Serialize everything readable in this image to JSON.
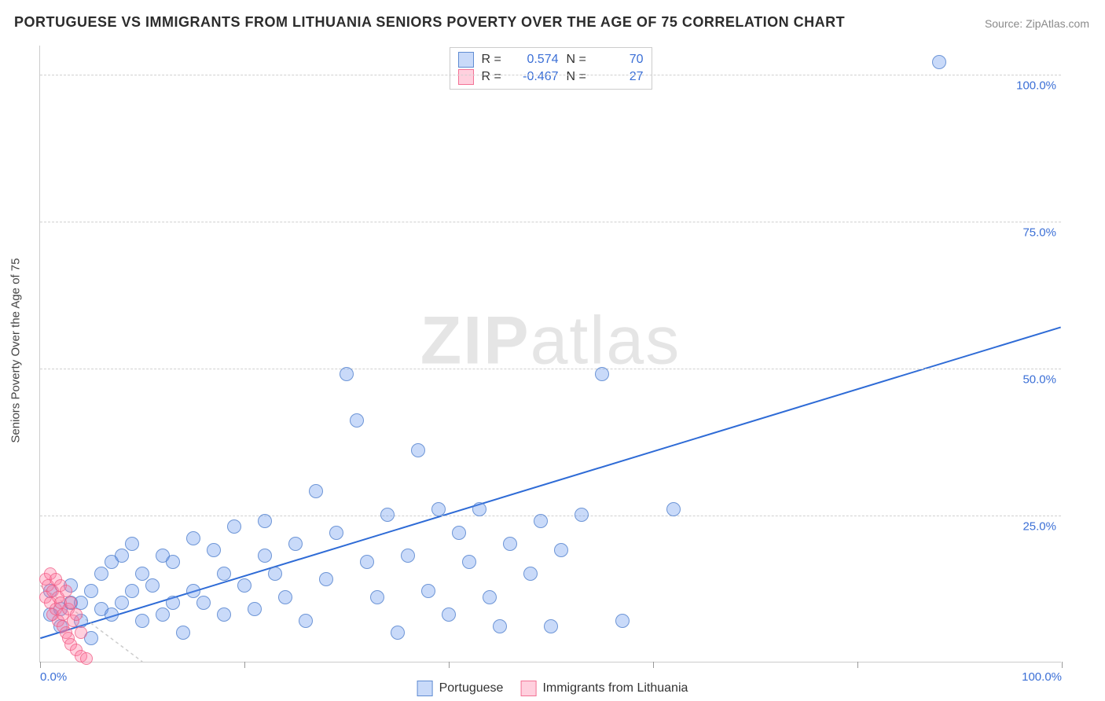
{
  "title": "PORTUGUESE VS IMMIGRANTS FROM LITHUANIA SENIORS POVERTY OVER THE AGE OF 75 CORRELATION CHART",
  "source": "Source: ZipAtlas.com",
  "y_axis_label": "Seniors Poverty Over the Age of 75",
  "watermark": {
    "bold": "ZIP",
    "light": "atlas"
  },
  "chart": {
    "type": "scatter",
    "xlim": [
      0,
      100
    ],
    "ylim": [
      0,
      105
    ],
    "x_ticks": [
      0,
      20,
      40,
      60,
      80,
      100
    ],
    "x_tick_labels": [
      "0.0%",
      "",
      "",
      "",
      "",
      "100.0%"
    ],
    "y_ticks": [
      25,
      50,
      75,
      100
    ],
    "y_tick_labels": [
      "25.0%",
      "50.0%",
      "75.0%",
      "100.0%"
    ],
    "background_color": "#ffffff",
    "grid_color": "#d0d0d0",
    "axis_text_color": "#3b6fd6",
    "series": [
      {
        "key": "portuguese",
        "label": "Portuguese",
        "color_fill": "rgba(100,149,237,0.35)",
        "color_stroke": "rgba(70,120,200,0.7)",
        "marker_size": 18,
        "R": "0.574",
        "N": "70",
        "trend": {
          "x1": 0,
          "y1": 4,
          "x2": 100,
          "y2": 57,
          "color": "#2e6bd6",
          "width": 2
        },
        "points": [
          [
            1,
            8
          ],
          [
            1,
            12
          ],
          [
            2,
            9
          ],
          [
            2,
            6
          ],
          [
            3,
            10
          ],
          [
            3,
            13
          ],
          [
            4,
            10
          ],
          [
            4,
            7
          ],
          [
            5,
            4
          ],
          [
            5,
            12
          ],
          [
            6,
            15
          ],
          [
            6,
            9
          ],
          [
            7,
            8
          ],
          [
            7,
            17
          ],
          [
            8,
            18
          ],
          [
            8,
            10
          ],
          [
            9,
            12
          ],
          [
            9,
            20
          ],
          [
            10,
            7
          ],
          [
            10,
            15
          ],
          [
            11,
            13
          ],
          [
            12,
            18
          ],
          [
            12,
            8
          ],
          [
            13,
            10
          ],
          [
            13,
            17
          ],
          [
            14,
            5
          ],
          [
            15,
            21
          ],
          [
            15,
            12
          ],
          [
            16,
            10
          ],
          [
            17,
            19
          ],
          [
            18,
            15
          ],
          [
            18,
            8
          ],
          [
            19,
            23
          ],
          [
            20,
            13
          ],
          [
            21,
            9
          ],
          [
            22,
            18
          ],
          [
            22,
            24
          ],
          [
            23,
            15
          ],
          [
            24,
            11
          ],
          [
            25,
            20
          ],
          [
            26,
            7
          ],
          [
            27,
            29
          ],
          [
            28,
            14
          ],
          [
            29,
            22
          ],
          [
            30,
            49
          ],
          [
            31,
            41
          ],
          [
            32,
            17
          ],
          [
            33,
            11
          ],
          [
            34,
            25
          ],
          [
            35,
            5
          ],
          [
            36,
            18
          ],
          [
            37,
            36
          ],
          [
            38,
            12
          ],
          [
            39,
            26
          ],
          [
            40,
            8
          ],
          [
            41,
            22
          ],
          [
            42,
            17
          ],
          [
            43,
            26
          ],
          [
            44,
            11
          ],
          [
            45,
            6
          ],
          [
            46,
            20
          ],
          [
            48,
            15
          ],
          [
            49,
            24
          ],
          [
            50,
            6
          ],
          [
            51,
            19
          ],
          [
            53,
            25
          ],
          [
            55,
            49
          ],
          [
            57,
            7
          ],
          [
            62,
            26
          ],
          [
            88,
            102
          ]
        ]
      },
      {
        "key": "lithuania",
        "label": "Immigrants from Lithuania",
        "color_fill": "rgba(255,120,160,0.35)",
        "color_stroke": "rgba(240,90,130,0.7)",
        "marker_size": 16,
        "R": "-0.467",
        "N": "27",
        "trend": {
          "x1": 0,
          "y1": 13,
          "x2": 10,
          "y2": 0,
          "color": "#cccccc",
          "width": 1.5,
          "dashed": true
        },
        "points": [
          [
            0.5,
            14
          ],
          [
            0.5,
            11
          ],
          [
            0.8,
            13
          ],
          [
            1,
            15
          ],
          [
            1,
            10
          ],
          [
            1.2,
            12
          ],
          [
            1.2,
            8
          ],
          [
            1.5,
            14
          ],
          [
            1.5,
            9
          ],
          [
            1.8,
            11
          ],
          [
            1.8,
            7
          ],
          [
            2,
            13
          ],
          [
            2,
            10
          ],
          [
            2.2,
            8
          ],
          [
            2.2,
            6
          ],
          [
            2.5,
            12
          ],
          [
            2.5,
            5
          ],
          [
            2.8,
            9
          ],
          [
            2.8,
            4
          ],
          [
            3,
            10
          ],
          [
            3,
            3
          ],
          [
            3.2,
            7
          ],
          [
            3.5,
            8
          ],
          [
            3.5,
            2
          ],
          [
            4,
            5
          ],
          [
            4,
            1
          ],
          [
            4.5,
            0.5
          ]
        ]
      }
    ]
  },
  "legend_top": {
    "rows": [
      {
        "swatch": "blue",
        "R_label": "R =",
        "R": "0.574",
        "N_label": "N =",
        "N": "70"
      },
      {
        "swatch": "pink",
        "R_label": "R =",
        "R": "-0.467",
        "N_label": "N =",
        "N": "27"
      }
    ]
  },
  "legend_bottom": {
    "items": [
      {
        "swatch": "blue",
        "label": "Portuguese"
      },
      {
        "swatch": "pink",
        "label": "Immigrants from Lithuania"
      }
    ]
  }
}
